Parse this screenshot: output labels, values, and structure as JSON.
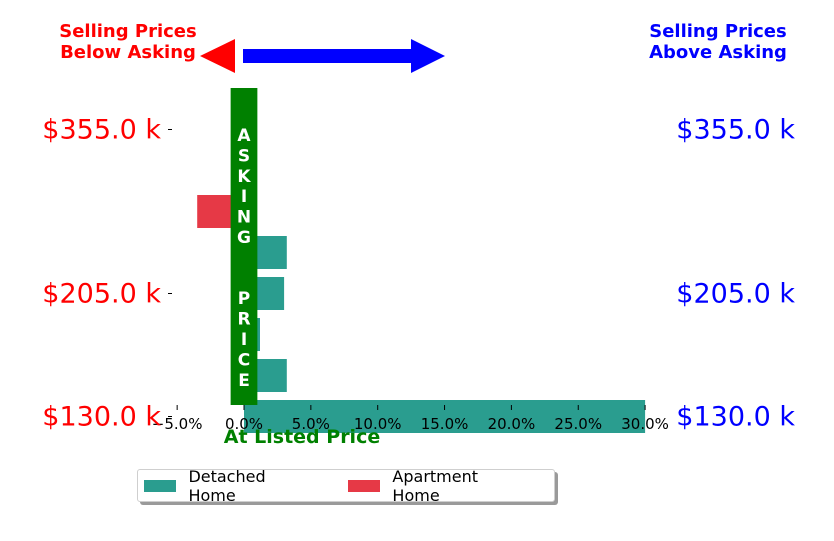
{
  "annotations": {
    "left_line1": "Selling Prices",
    "left_line2": "Below Asking",
    "right_line1": "Selling Prices",
    "right_line2": "Above Asking",
    "asking_price": "ASKING  PRICE",
    "at_listed_price": "At Listed Price"
  },
  "colors": {
    "detached": "#2a9d8f",
    "apartment": "#e63946",
    "asking_band": "#008000",
    "left_labels": "#ff0000",
    "right_labels": "#0000ff",
    "left_arrow": "#ff0000",
    "right_arrow": "#0000ff"
  },
  "legend": [
    {
      "label": "Detached Home",
      "color": "#2a9d8f"
    },
    {
      "label": "Apartment Home",
      "color": "#e63946"
    }
  ],
  "chart_data": {
    "type": "bar",
    "orientation": "horizontal",
    "x_tick_labels": [
      "−5.0%",
      "0.0%",
      "5.0%",
      "10.0%",
      "15.0%",
      "20.0%",
      "25.0%",
      "30.0%"
    ],
    "x_ticks": [
      -5,
      0,
      5,
      10,
      15,
      20,
      25,
      30
    ],
    "xlim": [
      -5,
      30
    ],
    "y_tick_labels": [
      "$355.0 k",
      "$205.0 k",
      "$130.0 k"
    ],
    "y_ticks_at_rows": [
      0,
      4,
      7
    ],
    "rows": 8,
    "series": [
      {
        "name": "Detached Home",
        "values": [
          0,
          0,
          0,
          3.2,
          3.0,
          1.2,
          3.2,
          30.0
        ]
      },
      {
        "name": "Apartment Home",
        "values": [
          0,
          -0.5,
          -3.5,
          0,
          0,
          0,
          0,
          0
        ]
      }
    ],
    "asking_band_halfwidth": 1.0,
    "legend_position": "bottom"
  }
}
